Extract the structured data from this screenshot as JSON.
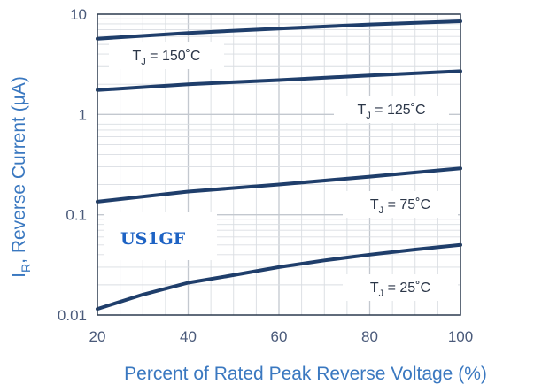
{
  "chart_data": {
    "type": "line",
    "title": "",
    "xlabel": "Percent of Rated  Peak Reverse Voltage (%)",
    "ylabel_main": "I",
    "ylabel_sub": "R",
    "ylabel_rest": ", Reverse Current (µA)",
    "x_scale": "linear",
    "y_scale": "log",
    "xlim": [
      20,
      100
    ],
    "ylim": [
      0.01,
      10
    ],
    "x_ticks": [
      20,
      40,
      60,
      80,
      100
    ],
    "x_tick_labels": [
      "20",
      "40",
      "60",
      "80",
      "100"
    ],
    "y_ticks": [
      0.01,
      0.1,
      1,
      10
    ],
    "y_tick_labels": [
      "0.01",
      "0.1",
      "1",
      "10"
    ],
    "grid": true,
    "series": [
      {
        "name": "T_J = 150˚C",
        "label_main": "T",
        "label_sub": "J",
        "label_rest": " = 150˚C",
        "x": [
          20,
          40,
          60,
          80,
          100
        ],
        "y": [
          5.7,
          6.5,
          7.2,
          7.9,
          8.5
        ]
      },
      {
        "name": "T_J = 125˚C",
        "label_main": "T",
        "label_sub": "J",
        "label_rest": " = 125˚C",
        "x": [
          20,
          40,
          60,
          80,
          100
        ],
        "y": [
          1.75,
          2.0,
          2.2,
          2.45,
          2.7
        ]
      },
      {
        "name": "T_J = 75˚C",
        "label_main": "T",
        "label_sub": "J",
        "label_rest": " = 75˚C",
        "x": [
          20,
          40,
          60,
          80,
          100
        ],
        "y": [
          0.135,
          0.17,
          0.2,
          0.24,
          0.29
        ]
      },
      {
        "name": "T_J = 25˚C",
        "label_main": "T",
        "label_sub": "J",
        "label_rest": " = 25˚C",
        "x": [
          20,
          30,
          40,
          50,
          60,
          70,
          80,
          90,
          100
        ],
        "y": [
          0.0115,
          0.016,
          0.021,
          0.025,
          0.03,
          0.035,
          0.04,
          0.045,
          0.05
        ]
      }
    ],
    "annotation": "US1GF",
    "colors": {
      "line": "#1f3e6b",
      "grid": "#c3c8cf",
      "minor_grid": "#d9dde2",
      "axis": "#2c3a4f",
      "tick_text": "#4a5a7a",
      "axis_title": "#3a78c0",
      "annotation": "#1e63c4",
      "background": "#ffffff"
    }
  }
}
